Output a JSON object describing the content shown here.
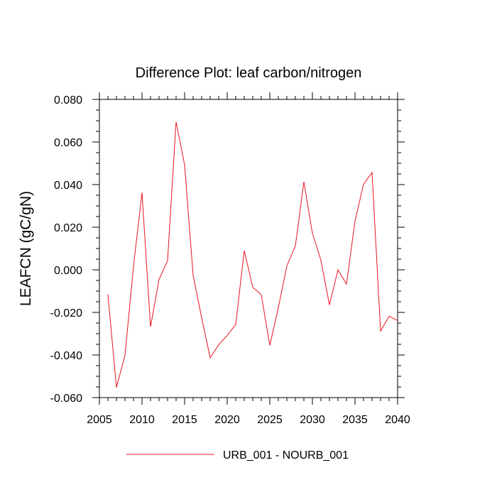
{
  "chart_data": {
    "type": "line",
    "title": "Difference Plot: leaf carbon/nitrogen",
    "xlabel": "",
    "ylabel": "LEAFCN  (gC/gN)",
    "xlim": [
      2005,
      2040
    ],
    "ylim": [
      -0.06,
      0.08
    ],
    "x_ticks": [
      2005,
      2010,
      2015,
      2020,
      2025,
      2030,
      2035,
      2040
    ],
    "x_tick_labels": [
      "2005",
      "2010",
      "2015",
      "2020",
      "2025",
      "2030",
      "2035",
      "2040"
    ],
    "y_ticks": [
      -0.06,
      -0.04,
      -0.02,
      0.0,
      0.02,
      0.04,
      0.06,
      0.08
    ],
    "y_tick_labels": [
      "-0.060",
      "-0.040",
      "-0.020",
      "0.000",
      "0.020",
      "0.040",
      "0.060",
      "0.080"
    ],
    "grid": false,
    "legend": "bottom-center",
    "series": [
      {
        "name": "URB_001 - NOURB_001",
        "color": "#e8141e",
        "x": [
          2006,
          2007,
          2008,
          2009,
          2010,
          2011,
          2012,
          2013,
          2014,
          2015,
          2016,
          2017,
          2018,
          2019,
          2020,
          2021,
          2022,
          2023,
          2024,
          2025,
          2026,
          2027,
          2028,
          2029,
          2030,
          2031,
          2032,
          2033,
          2034,
          2035,
          2036,
          2037,
          2038,
          2039,
          2040
        ],
        "values": [
          -0.0115,
          -0.0552,
          -0.0402,
          0.0015,
          0.0362,
          -0.0268,
          -0.0045,
          0.0042,
          0.0694,
          0.0492,
          -0.0025,
          -0.0225,
          -0.0413,
          -0.0352,
          -0.0308,
          -0.0257,
          0.009,
          -0.0082,
          -0.0117,
          -0.0355,
          -0.0178,
          0.0018,
          0.0112,
          0.0413,
          0.0172,
          0.0045,
          -0.0165,
          -0.0,
          -0.0067,
          0.0228,
          0.0402,
          0.0457,
          -0.0288,
          -0.0218,
          -0.0238
        ]
      }
    ]
  }
}
